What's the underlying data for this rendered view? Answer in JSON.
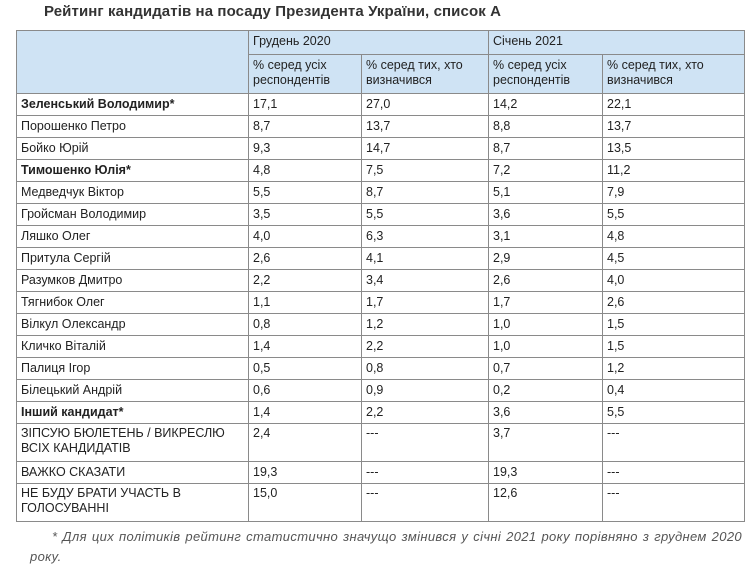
{
  "title": "Рейтинг кандидатів на посаду Президента України, список А",
  "months": [
    "Грудень 2020",
    "Січень 2021"
  ],
  "subheaders": [
    "% серед усіх респондентів",
    "% серед тих, хто визначився",
    "% серед усіх респондентів",
    "% серед тих, хто визначився"
  ],
  "rows": [
    {
      "name": "Зеленський Володимир*",
      "bold": true,
      "tall": false,
      "values": [
        "17,1",
        "27,0",
        "14,2",
        "22,1"
      ]
    },
    {
      "name": "Порошенко Петро",
      "bold": false,
      "tall": false,
      "values": [
        "8,7",
        "13,7",
        "8,8",
        "13,7"
      ]
    },
    {
      "name": "Бойко Юрій",
      "bold": false,
      "tall": false,
      "values": [
        "9,3",
        "14,7",
        "8,7",
        "13,5"
      ]
    },
    {
      "name": "Тимошенко Юлія*",
      "bold": true,
      "tall": false,
      "values": [
        "4,8",
        "7,5",
        "7,2",
        "11,2"
      ]
    },
    {
      "name": "Медведчук Віктор",
      "bold": false,
      "tall": false,
      "values": [
        "5,5",
        "8,7",
        "5,1",
        "7,9"
      ]
    },
    {
      "name": "Гройсман Володимир",
      "bold": false,
      "tall": false,
      "values": [
        "3,5",
        "5,5",
        "3,6",
        "5,5"
      ]
    },
    {
      "name": "Ляшко Олег",
      "bold": false,
      "tall": false,
      "values": [
        "4,0",
        "6,3",
        "3,1",
        "4,8"
      ]
    },
    {
      "name": "Притула Сергій",
      "bold": false,
      "tall": false,
      "values": [
        "2,6",
        "4,1",
        "2,9",
        "4,5"
      ]
    },
    {
      "name": "Разумков Дмитро",
      "bold": false,
      "tall": false,
      "values": [
        "2,2",
        "3,4",
        "2,6",
        "4,0"
      ]
    },
    {
      "name": "Тягнибок Олег",
      "bold": false,
      "tall": false,
      "values": [
        "1,1",
        "1,7",
        "1,7",
        "2,6"
      ]
    },
    {
      "name": "Вілкул Олександр",
      "bold": false,
      "tall": false,
      "values": [
        "0,8",
        "1,2",
        "1,0",
        "1,5"
      ]
    },
    {
      "name": "Кличко Віталій",
      "bold": false,
      "tall": false,
      "values": [
        "1,4",
        "2,2",
        "1,0",
        "1,5"
      ]
    },
    {
      "name": "Палиця Ігор",
      "bold": false,
      "tall": false,
      "values": [
        "0,5",
        "0,8",
        "0,7",
        "1,2"
      ]
    },
    {
      "name": "Білецький Андрій",
      "bold": false,
      "tall": false,
      "values": [
        "0,6",
        "0,9",
        "0,2",
        "0,4"
      ]
    },
    {
      "name": "Інший кандидат*",
      "bold": true,
      "tall": false,
      "values": [
        "1,4",
        "2,2",
        "3,6",
        "5,5"
      ]
    },
    {
      "name": "ЗІПСУЮ БЮЛЕТЕНЬ / ВИКРЕСЛЮ ВСІХ КАНДИДАТІВ",
      "bold": false,
      "tall": true,
      "values": [
        "2,4",
        "---",
        "3,7",
        "---"
      ]
    },
    {
      "name": "ВАЖКО СКАЗАТИ",
      "bold": false,
      "tall": false,
      "values": [
        "19,3",
        "---",
        "19,3",
        "---"
      ]
    },
    {
      "name": "НЕ БУДУ БРАТИ УЧАСТЬ В ГОЛОСУВАННІ",
      "bold": false,
      "tall": true,
      "values": [
        "15,0",
        "---",
        "12,6",
        "---"
      ]
    }
  ],
  "footnote": "* Для цих політиків рейтинг статистично значущо змінився у січні 2021 року порівняно з груднем 2020 року."
}
